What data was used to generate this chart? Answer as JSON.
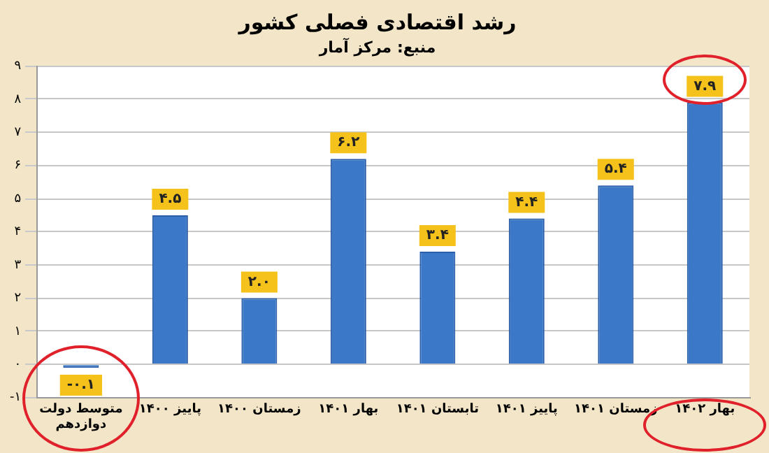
{
  "chart_data": {
    "type": "bar",
    "title": "رشد اقتصادی فصلی کشور",
    "subtitle": "منبع: مرکز آمار",
    "categories": [
      "متوسط دولت دوازدهم",
      "پاییز ۱۴۰۰",
      "زمستان ۱۴۰۰",
      "بهار ۱۴۰۱",
      "تابستان ۱۴۰۱",
      "پاییز ۱۴۰۱",
      "زمستان ۱۴۰۱",
      "بهار ۱۴۰۲"
    ],
    "values": [
      -0.1,
      4.5,
      2.0,
      6.2,
      3.4,
      4.4,
      5.4,
      7.9
    ],
    "value_labels": [
      "-۰.۱",
      "۴.۵",
      "۲.۰",
      "۶.۲",
      "۳.۴",
      "۴.۴",
      "۵.۴",
      "۷.۹"
    ],
    "color": "#3b78c8",
    "ylim": [
      -1,
      9
    ],
    "yticks": [
      {
        "value": -1,
        "label": "-۱"
      },
      {
        "value": 0,
        "label": "۰"
      },
      {
        "value": 1,
        "label": "۱"
      },
      {
        "value": 2,
        "label": "۲"
      },
      {
        "value": 3,
        "label": "۳"
      },
      {
        "value": 4,
        "label": "۴"
      },
      {
        "value": 5,
        "label": "۵"
      },
      {
        "value": 6,
        "label": "۶"
      },
      {
        "value": 7,
        "label": "۷"
      },
      {
        "value": 8,
        "label": "۸"
      },
      {
        "value": 9,
        "label": "۹"
      }
    ],
    "grid": "y",
    "legend": false
  }
}
